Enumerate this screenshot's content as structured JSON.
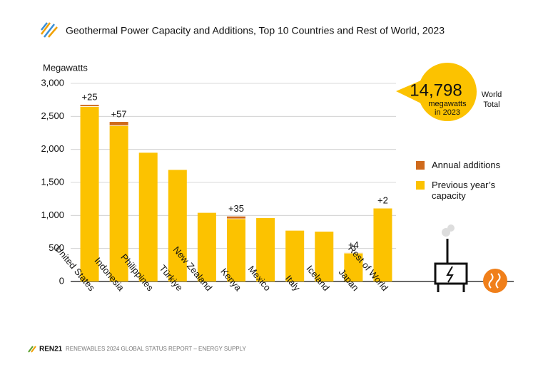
{
  "chart_data": {
    "type": "stacked_bar",
    "title": "Geothermal Power Capacity and Additions, Top 10 Countries and Rest of World, 2023",
    "y_label": "Megawatts",
    "categories": [
      "United States",
      "Indonesia",
      "Philippines",
      "Türkiye",
      "New Zealand",
      "Kenya",
      "Mexico",
      "Italy",
      "Iceland",
      "Japan",
      "Rest of World"
    ],
    "series": [
      {
        "name": "Previous year’s capacity",
        "color": "#fcc200",
        "values": [
          2650,
          2360,
          1950,
          1690,
          1040,
          950,
          960,
          770,
          755,
          430,
          1110
        ]
      },
      {
        "name": "Annual additions",
        "color": "#cf6a1c",
        "values": [
          25,
          57,
          null,
          null,
          null,
          35,
          null,
          null,
          null,
          4,
          2
        ],
        "value_labels": [
          "+25",
          "+57",
          null,
          null,
          null,
          "+35",
          null,
          null,
          null,
          "+4",
          "+2"
        ]
      }
    ],
    "ylim": [
      0,
      3000
    ],
    "yticks": [
      0,
      500,
      {
        "value": 1000,
        "label": "1,000"
      },
      {
        "value": 1500,
        "label": "1,500"
      },
      {
        "value": 2000,
        "label": "2,000"
      },
      {
        "value": 2500,
        "label": "2,500"
      },
      {
        "value": 3000,
        "label": "3,000"
      }
    ],
    "grid": true,
    "callout": {
      "value": 14798,
      "value_label": "14,798",
      "unit": "megawatts in 2023",
      "label": "World Total"
    },
    "footer": {
      "brand": "REN21",
      "source": "RENEWABLES 2024 GLOBAL STATUS REPORT – ENERGY SUPPLY"
    }
  }
}
